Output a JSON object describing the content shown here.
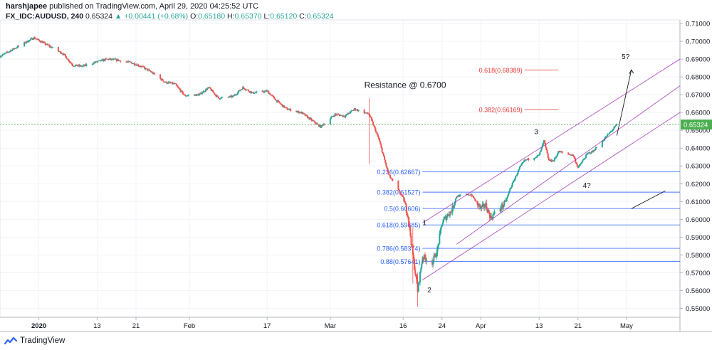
{
  "header": {
    "publisher_user": "harshjapee",
    "publisher_text": " published on TradingView.com, April 29, 2020 04:25:52 UTC",
    "symbol": "FX_IDC:AUDUSD, 240",
    "last": "0.65324",
    "change": "▲ +0.00441 (+0.68%)",
    "open_label": "O:",
    "open": "0.65180",
    "high_label": "H:",
    "high": "0.65370",
    "low_label": "L:",
    "low": "0.65120",
    "close_label": "C:",
    "close": "0.65324"
  },
  "footer": {
    "brand": "TradingView"
  },
  "colors": {
    "up": "#26a69a",
    "down": "#ef5350",
    "channel": "#9c27b0",
    "fib_blue": "#2962ff",
    "fib_red": "#e53935",
    "hline_green": "#4caf50",
    "price_label_bg": "#4caf50"
  },
  "chart_data": {
    "type": "candlestick",
    "title": "Resistance @ 0.6700",
    "ylim": [
      0.545,
      0.712
    ],
    "y_ticks": [
      "0.71000",
      "0.70000",
      "0.69000",
      "0.68000",
      "0.67000",
      "0.66000",
      "0.65000",
      "0.64000",
      "0.63000",
      "0.62000",
      "0.61000",
      "0.60000",
      "0.59000",
      "0.58000",
      "0.57000",
      "0.56000",
      "0.55000"
    ],
    "y_tick_values": [
      0.71,
      0.7,
      0.69,
      0.68,
      0.67,
      0.66,
      0.65,
      0.64,
      0.63,
      0.62,
      0.61,
      0.6,
      0.59,
      0.58,
      0.57,
      0.56,
      0.55
    ],
    "x_ticks": [
      "2020",
      "13",
      "21",
      "Feb",
      "17",
      "Mar",
      "16",
      "24",
      "Apr",
      "13",
      "21",
      "May"
    ],
    "x_tick_dates": [
      "2020-01-01",
      "2020-01-13",
      "2020-01-21",
      "2020-02-01",
      "2020-02-17",
      "2020-03-01",
      "2020-03-16",
      "2020-03-24",
      "2020-04-01",
      "2020-04-13",
      "2020-04-21",
      "2020-05-01"
    ],
    "x_range": [
      "2019-12-24",
      "2020-05-12"
    ],
    "current_price": "0.65324",
    "current_price_value": 0.65324,
    "close_path": [
      [
        "2019-12-24",
        0.6916
      ],
      [
        "2019-12-27",
        0.696
      ],
      [
        "2019-12-31",
        0.702
      ],
      [
        "2020-01-03",
        0.6975
      ],
      [
        "2020-01-06",
        0.693
      ],
      [
        "2020-01-08",
        0.6865
      ],
      [
        "2020-01-10",
        0.686
      ],
      [
        "2020-01-13",
        0.6885
      ],
      [
        "2020-01-15",
        0.69
      ],
      [
        "2020-01-17",
        0.6895
      ],
      [
        "2020-01-20",
        0.688
      ],
      [
        "2020-01-22",
        0.686
      ],
      [
        "2020-01-24",
        0.683
      ],
      [
        "2020-01-27",
        0.677
      ],
      [
        "2020-01-29",
        0.676
      ],
      [
        "2020-01-31",
        0.6695
      ],
      [
        "2020-02-03",
        0.67
      ],
      [
        "2020-02-05",
        0.674
      ],
      [
        "2020-02-07",
        0.668
      ],
      [
        "2020-02-10",
        0.669
      ],
      [
        "2020-02-12",
        0.674
      ],
      [
        "2020-02-14",
        0.671
      ],
      [
        "2020-02-17",
        0.672
      ],
      [
        "2020-02-19",
        0.6665
      ],
      [
        "2020-02-21",
        0.662
      ],
      [
        "2020-02-24",
        0.66
      ],
      [
        "2020-02-26",
        0.656
      ],
      [
        "2020-02-28",
        0.652
      ],
      [
        "2020-03-02",
        0.659
      ],
      [
        "2020-03-04",
        0.658
      ],
      [
        "2020-03-06",
        0.662
      ],
      [
        "2020-03-09",
        0.659
      ],
      [
        "2020-03-11",
        0.645
      ],
      [
        "2020-03-13",
        0.625
      ],
      [
        "2020-03-16",
        0.612
      ],
      [
        "2020-03-17",
        0.602
      ],
      [
        "2020-03-18",
        0.58
      ],
      [
        "2020-03-19",
        0.56
      ],
      [
        "2020-03-20",
        0.579
      ],
      [
        "2020-03-22",
        0.576
      ],
      [
        "2020-03-23",
        0.582
      ],
      [
        "2020-03-24",
        0.598
      ],
      [
        "2020-03-25",
        0.602
      ],
      [
        "2020-03-26",
        0.605
      ],
      [
        "2020-03-27",
        0.613
      ],
      [
        "2020-03-30",
        0.614
      ],
      [
        "2020-03-31",
        0.61
      ],
      [
        "2020-04-01",
        0.606
      ],
      [
        "2020-04-02",
        0.608
      ],
      [
        "2020-04-03",
        0.601
      ],
      [
        "2020-04-06",
        0.609
      ],
      [
        "2020-04-07",
        0.617
      ],
      [
        "2020-04-08",
        0.623
      ],
      [
        "2020-04-09",
        0.629
      ],
      [
        "2020-04-10",
        0.633
      ],
      [
        "2020-04-13",
        0.636
      ],
      [
        "2020-04-14",
        0.644
      ],
      [
        "2020-04-15",
        0.633
      ],
      [
        "2020-04-16",
        0.633
      ],
      [
        "2020-04-17",
        0.638
      ],
      [
        "2020-04-20",
        0.636
      ],
      [
        "2020-04-21",
        0.629
      ],
      [
        "2020-04-22",
        0.633
      ],
      [
        "2020-04-23",
        0.637
      ],
      [
        "2020-04-24",
        0.638
      ],
      [
        "2020-04-27",
        0.647
      ],
      [
        "2020-04-28",
        0.65
      ],
      [
        "2020-04-29",
        0.6532
      ]
    ],
    "fib_levels": [
      {
        "label": "0.236(0.62667)",
        "value": 0.62667,
        "color": "blue"
      },
      {
        "label": "0.382(0.61527)",
        "value": 0.61527,
        "color": "blue"
      },
      {
        "label": "0.5(0.60606)",
        "value": 0.60606,
        "color": "blue"
      },
      {
        "label": "0.618(0.59685)",
        "value": 0.59685,
        "color": "blue"
      },
      {
        "label": "0.786(0.58374)",
        "value": 0.58374,
        "color": "blue"
      },
      {
        "label": "0.88(0.57641)",
        "value": 0.57641,
        "color": "blue"
      },
      {
        "label": "0.382(0.66169)",
        "value": 0.66169,
        "color": "red"
      },
      {
        "label": "0.618(0.68389)",
        "value": 0.68389,
        "color": "red"
      }
    ],
    "annotations": [
      "Resistance @ 0.6700",
      "1",
      "2",
      "3",
      "4?",
      "5?"
    ]
  }
}
